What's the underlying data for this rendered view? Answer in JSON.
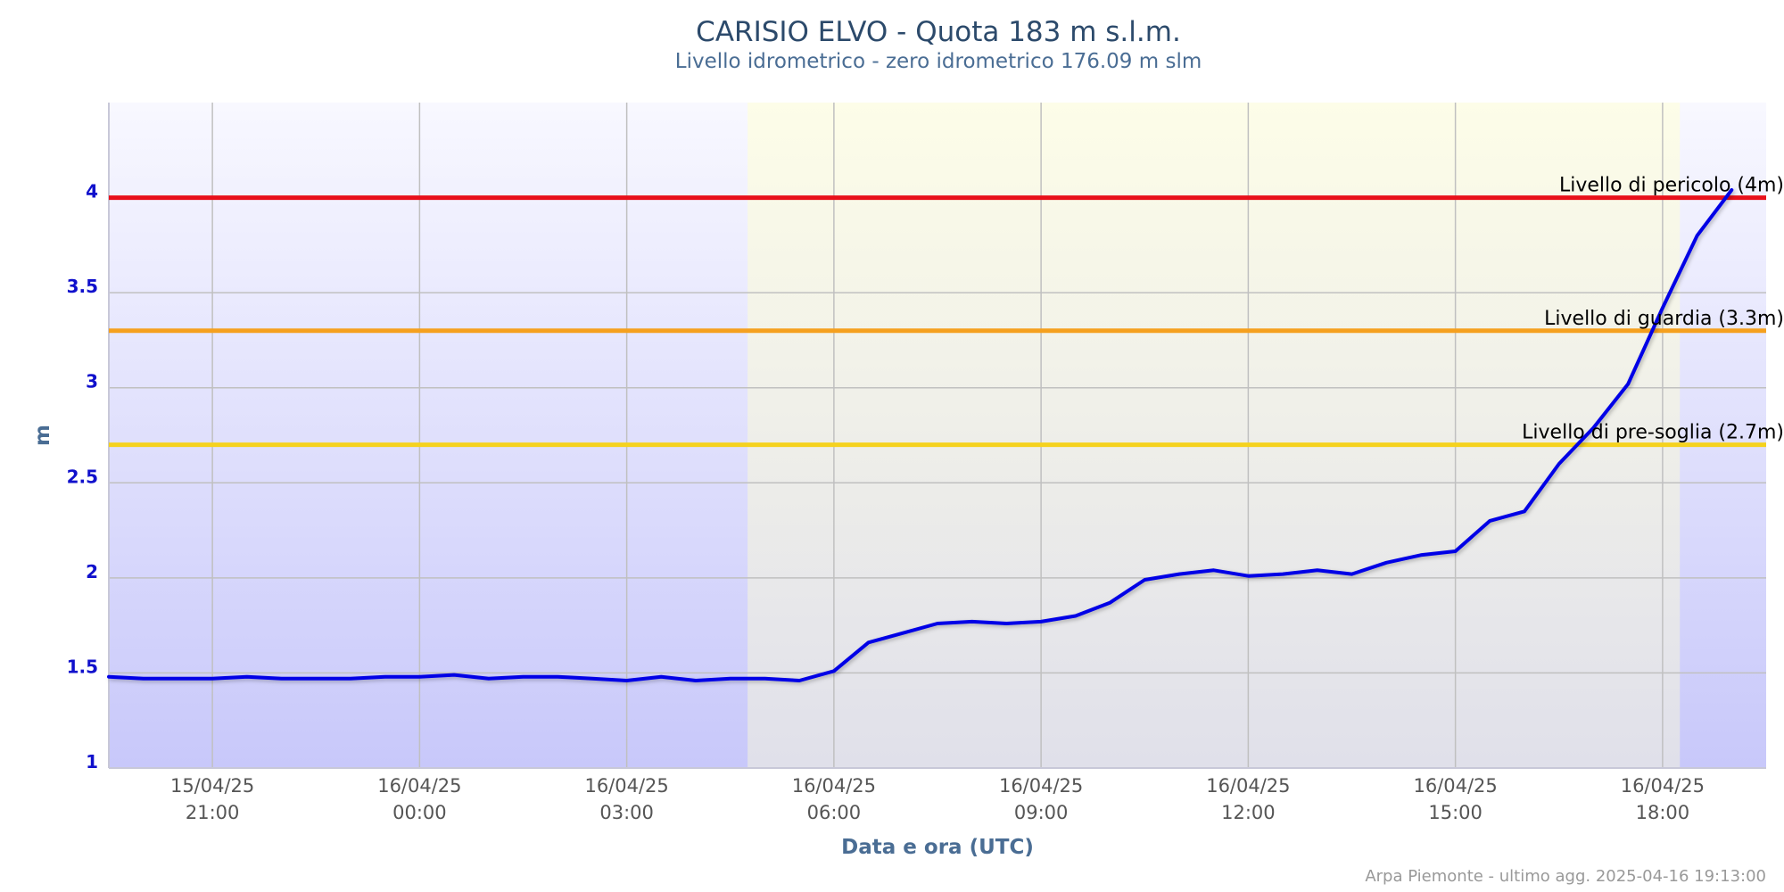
{
  "title": "CARISIO ELVO - Quota 183 m s.l.m.",
  "subtitle": "Livello idrometrico - zero idrometrico 176.09 m slm",
  "credits": "Arpa Piemonte - ultimo agg. 2025-04-16 19:13:00",
  "colors": {
    "series": "#0000e6",
    "pericolo": "#e8101a",
    "guardia": "#f5a01e",
    "presoglia": "#f5d21e",
    "ylabels": "#1010cc",
    "night_top": "#f8f8ff",
    "night_bottom": "#c8c8fa",
    "day_top": "#fdfde8",
    "day_bottom": "#e0e0ea"
  },
  "chart_data": {
    "type": "line",
    "title": "CARISIO ELVO - Quota 183 m s.l.m.",
    "subtitle": "Livello idrometrico - zero idrometrico 176.09 m slm",
    "xlabel": "Data e ora (UTC)",
    "ylabel": "m",
    "x_range": [
      "2025-04-15 19:30",
      "2025-04-16 19:30"
    ],
    "ylim": [
      1,
      4.5
    ],
    "y_ticks": [
      "1",
      "1.5",
      "2",
      "2.5",
      "3",
      "3.5",
      "4"
    ],
    "x_ticks": [
      {
        "date": "15/04/25",
        "time": "21:00"
      },
      {
        "date": "16/04/25",
        "time": "00:00"
      },
      {
        "date": "16/04/25",
        "time": "03:00"
      },
      {
        "date": "16/04/25",
        "time": "06:00"
      },
      {
        "date": "16/04/25",
        "time": "09:00"
      },
      {
        "date": "16/04/25",
        "time": "12:00"
      },
      {
        "date": "16/04/25",
        "time": "15:00"
      },
      {
        "date": "16/04/25",
        "time": "18:00"
      }
    ],
    "daylight_band": [
      "2025-04-16 04:45",
      "2025-04-16 18:15"
    ],
    "thresholds": [
      {
        "label": "Livello di pericolo (4m)",
        "value": 4.0,
        "color": "#e8101a"
      },
      {
        "label": "Livello di guardia (3.3m)",
        "value": 3.3,
        "color": "#f5a01e"
      },
      {
        "label": "Livello di pre-soglia (2.7m)",
        "value": 2.7,
        "color": "#f5d21e"
      }
    ],
    "series": [
      {
        "x": [
          "2025-04-15 19:30",
          "2025-04-15 20:00",
          "2025-04-15 20:30",
          "2025-04-15 21:00",
          "2025-04-15 21:30",
          "2025-04-15 22:00",
          "2025-04-15 22:30",
          "2025-04-15 23:00",
          "2025-04-15 23:30",
          "2025-04-16 00:00",
          "2025-04-16 00:30",
          "2025-04-16 01:00",
          "2025-04-16 01:30",
          "2025-04-16 02:00",
          "2025-04-16 02:30",
          "2025-04-16 03:00",
          "2025-04-16 03:30",
          "2025-04-16 04:00",
          "2025-04-16 04:30",
          "2025-04-16 05:00",
          "2025-04-16 05:30",
          "2025-04-16 06:00",
          "2025-04-16 06:30",
          "2025-04-16 07:00",
          "2025-04-16 07:30",
          "2025-04-16 08:00",
          "2025-04-16 08:30",
          "2025-04-16 09:00",
          "2025-04-16 09:30",
          "2025-04-16 10:00",
          "2025-04-16 10:30",
          "2025-04-16 11:00",
          "2025-04-16 11:30",
          "2025-04-16 12:00",
          "2025-04-16 12:30",
          "2025-04-16 13:00",
          "2025-04-16 13:30",
          "2025-04-16 14:00",
          "2025-04-16 14:30",
          "2025-04-16 15:00",
          "2025-04-16 15:30",
          "2025-04-16 16:00",
          "2025-04-16 16:30",
          "2025-04-16 17:00",
          "2025-04-16 17:30",
          "2025-04-16 18:00",
          "2025-04-16 18:30",
          "2025-04-16 19:00"
        ],
        "values": [
          1.48,
          1.47,
          1.47,
          1.47,
          1.48,
          1.47,
          1.47,
          1.47,
          1.48,
          1.48,
          1.49,
          1.47,
          1.48,
          1.48,
          1.47,
          1.46,
          1.48,
          1.46,
          1.47,
          1.47,
          1.46,
          1.51,
          1.66,
          1.71,
          1.76,
          1.77,
          1.76,
          1.77,
          1.8,
          1.87,
          1.99,
          2.02,
          2.04,
          2.01,
          2.02,
          2.04,
          2.02,
          2.08,
          2.12,
          2.14,
          2.3,
          2.35,
          2.6,
          2.79,
          3.02,
          3.42,
          3.8,
          4.04
        ]
      }
    ]
  }
}
